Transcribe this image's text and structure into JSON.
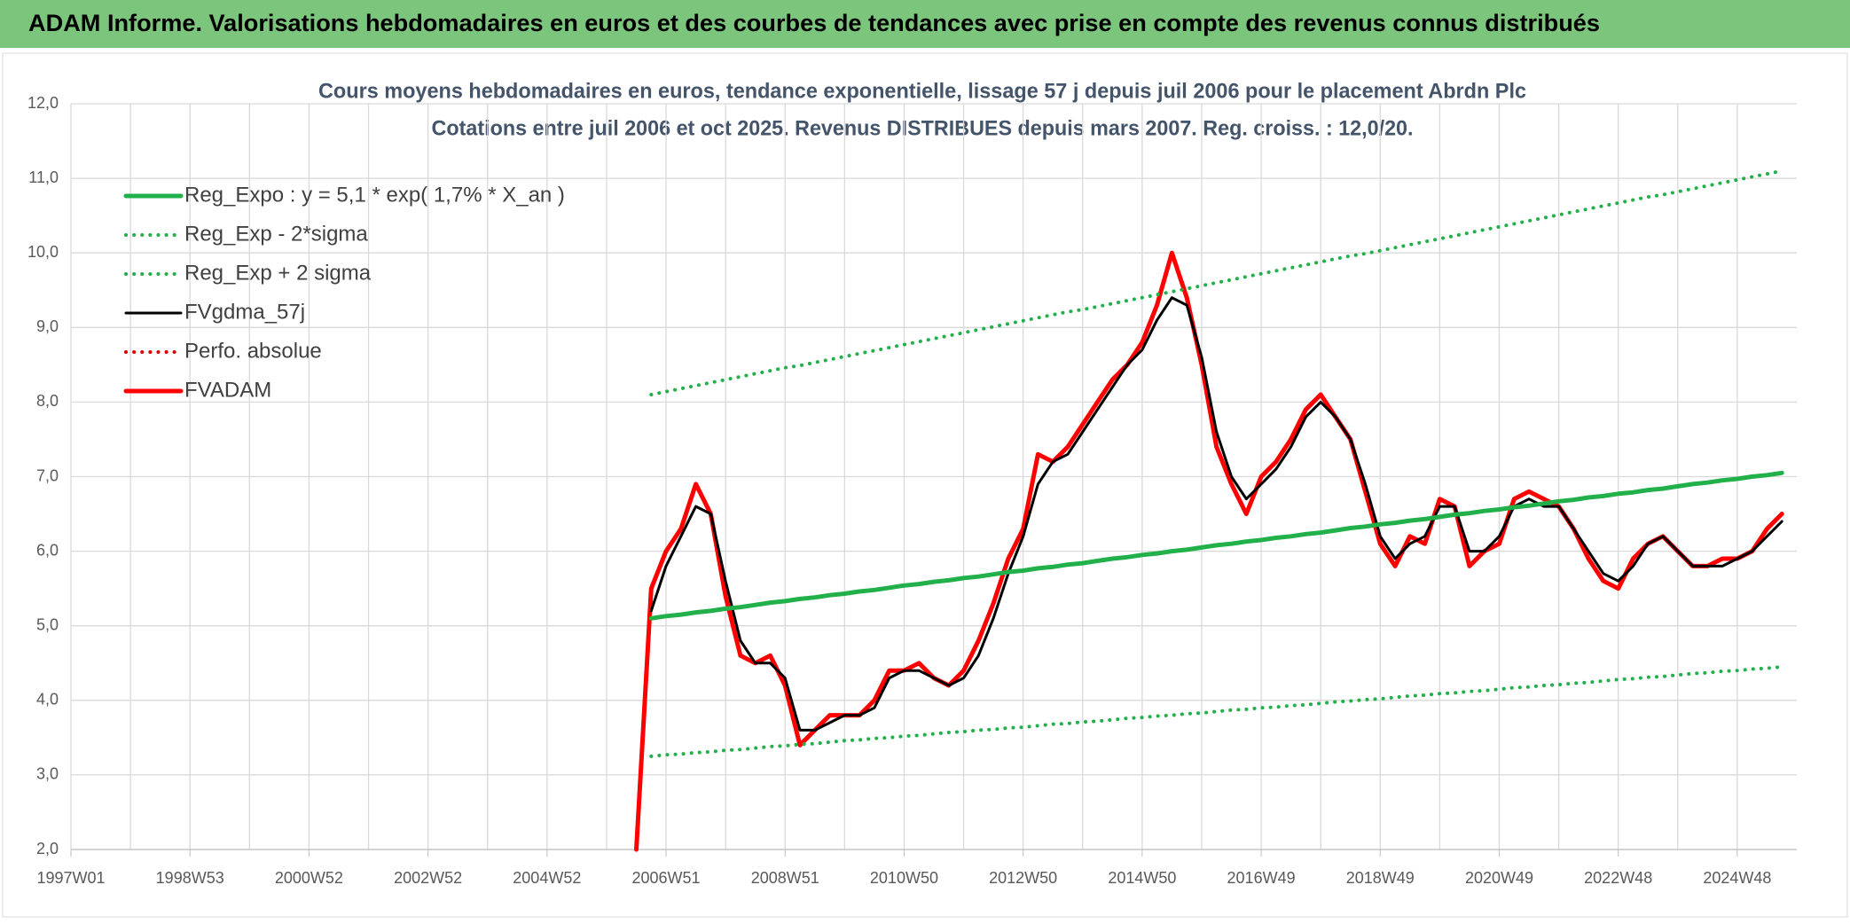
{
  "banner": {
    "title": "ADAM Informe. Valorisations hebdomadaires en euros et des courbes de tendances avec prise en compte des revenus connus distribués"
  },
  "chart_data": {
    "type": "line",
    "title": "Cours moyens hebdomadaires en euros, tendance exponentielle, lissage 57 j depuis juil 2006 pour le placement Abrdn Plc",
    "subtitle": "Cotations entre juil 2006 et oct 2025. Revenus DISTRIBUES depuis mars 2007. Reg. croiss. : 12,0/20.",
    "categories": [
      "1997W01",
      null,
      null,
      null,
      null,
      null,
      null,
      null,
      "1998W53",
      null,
      null,
      null,
      null,
      null,
      null,
      null,
      "2000W52",
      null,
      null,
      null,
      null,
      null,
      null,
      null,
      "2002W52",
      null,
      null,
      null,
      null,
      null,
      null,
      null,
      "2004W52",
      null,
      null,
      null,
      null,
      null,
      null,
      null,
      "2006W51",
      null,
      null,
      null,
      null,
      null,
      null,
      null,
      "2008W51",
      null,
      null,
      null,
      null,
      null,
      null,
      null,
      "2010W50",
      null,
      null,
      null,
      null,
      null,
      null,
      null,
      "2012W50",
      null,
      null,
      null,
      null,
      null,
      null,
      null,
      "2014W50",
      null,
      null,
      null,
      null,
      null,
      null,
      null,
      "2016W49",
      null,
      null,
      null,
      null,
      null,
      null,
      null,
      "2018W49",
      null,
      null,
      null,
      null,
      null,
      null,
      null,
      "2020W49",
      null,
      null,
      null,
      null,
      null,
      null,
      null,
      "2022W48",
      null,
      null,
      null,
      null,
      null,
      null,
      null,
      "2024W48",
      null,
      null,
      null
    ],
    "ylim": [
      2,
      12
    ],
    "yticks": [
      {
        "value": 2,
        "label": "2,0"
      },
      {
        "value": 3,
        "label": "3,0"
      },
      {
        "value": 4,
        "label": "4,0"
      },
      {
        "value": 5,
        "label": "5,0"
      },
      {
        "value": 6,
        "label": "6,0"
      },
      {
        "value": 7,
        "label": "7,0"
      },
      {
        "value": 8,
        "label": "8,0"
      },
      {
        "value": 9,
        "label": "9,0"
      },
      {
        "value": 10,
        "label": "10,0"
      },
      {
        "value": 11,
        "label": "11,0"
      },
      {
        "value": 12,
        "label": "12,0"
      }
    ],
    "grid": true,
    "legend": "upper left",
    "series": [
      {
        "name": "Reg_Expo : y = 5,1 * exp( 1,7% *  X_an )",
        "color": "#22b04b",
        "style": "thick",
        "values": [
          null,
          null,
          null,
          null,
          null,
          null,
          null,
          null,
          null,
          null,
          null,
          null,
          null,
          null,
          null,
          null,
          null,
          null,
          null,
          null,
          null,
          null,
          null,
          null,
          null,
          null,
          null,
          null,
          null,
          null,
          null,
          null,
          null,
          null,
          null,
          null,
          null,
          null,
          null,
          5.1,
          5.13,
          5.15,
          5.18,
          5.2,
          5.23,
          5.25,
          5.28,
          5.31,
          5.33,
          5.36,
          5.38,
          5.41,
          5.43,
          5.46,
          5.48,
          5.51,
          5.54,
          5.56,
          5.59,
          5.61,
          5.64,
          5.66,
          5.69,
          5.72,
          5.74,
          5.77,
          5.79,
          5.82,
          5.84,
          5.87,
          5.9,
          5.92,
          5.95,
          5.97,
          6.0,
          6.02,
          6.05,
          6.08,
          6.1,
          6.13,
          6.15,
          6.18,
          6.2,
          6.23,
          6.25,
          6.28,
          6.31,
          6.33,
          6.36,
          6.38,
          6.41,
          6.43,
          6.46,
          6.49,
          6.51,
          6.54,
          6.56,
          6.59,
          6.61,
          6.64,
          6.67,
          6.69,
          6.72,
          6.74,
          6.77,
          6.79,
          6.82,
          6.84,
          6.87,
          6.9,
          6.92,
          6.95,
          6.97,
          7.0,
          7.02,
          7.05
        ]
      },
      {
        "name": "Reg_Exp - 2*sigma",
        "color": "#22b04b",
        "style": "dotted",
        "values": [
          null,
          null,
          null,
          null,
          null,
          null,
          null,
          null,
          null,
          null,
          null,
          null,
          null,
          null,
          null,
          null,
          null,
          null,
          null,
          null,
          null,
          null,
          null,
          null,
          null,
          null,
          null,
          null,
          null,
          null,
          null,
          null,
          null,
          null,
          null,
          null,
          null,
          null,
          null,
          3.25,
          3.27,
          3.28,
          3.3,
          3.31,
          3.33,
          3.34,
          3.36,
          3.38,
          3.39,
          3.41,
          3.42,
          3.44,
          3.46,
          3.47,
          3.49,
          3.5,
          3.52,
          3.53,
          3.55,
          3.57,
          3.58,
          3.6,
          3.61,
          3.63,
          3.64,
          3.66,
          3.68,
          3.69,
          3.71,
          3.72,
          3.74,
          3.76,
          3.77,
          3.79,
          3.8,
          3.82,
          3.83,
          3.85,
          3.87,
          3.88,
          3.9,
          3.91,
          3.93,
          3.94,
          3.96,
          3.98,
          3.99,
          4.01,
          4.02,
          4.04,
          4.06,
          4.07,
          4.09,
          4.1,
          4.12,
          4.13,
          4.15,
          4.17,
          4.18,
          4.2,
          4.21,
          4.23,
          4.24,
          4.26,
          4.28,
          4.29,
          4.31,
          4.32,
          4.34,
          4.36,
          4.37,
          4.39,
          4.4,
          4.42,
          4.43,
          4.45
        ]
      },
      {
        "name": "Reg_Exp + 2 sigma",
        "color": "#22b04b",
        "style": "dotted",
        "values": [
          null,
          null,
          null,
          null,
          null,
          null,
          null,
          null,
          null,
          null,
          null,
          null,
          null,
          null,
          null,
          null,
          null,
          null,
          null,
          null,
          null,
          null,
          null,
          null,
          null,
          null,
          null,
          null,
          null,
          null,
          null,
          null,
          null,
          null,
          null,
          null,
          null,
          null,
          null,
          8.1,
          8.14,
          8.18,
          8.22,
          8.26,
          8.3,
          8.34,
          8.38,
          8.42,
          8.46,
          8.49,
          8.53,
          8.57,
          8.61,
          8.65,
          8.69,
          8.73,
          8.77,
          8.81,
          8.85,
          8.89,
          8.93,
          8.97,
          9.01,
          9.05,
          9.09,
          9.13,
          9.17,
          9.21,
          9.24,
          9.28,
          9.32,
          9.36,
          9.4,
          9.44,
          9.48,
          9.52,
          9.56,
          9.6,
          9.64,
          9.68,
          9.72,
          9.76,
          9.8,
          9.84,
          9.88,
          9.92,
          9.96,
          9.99,
          10.03,
          10.07,
          10.11,
          10.15,
          10.19,
          10.23,
          10.27,
          10.31,
          10.35,
          10.39,
          10.43,
          10.47,
          10.51,
          10.55,
          10.59,
          10.63,
          10.67,
          10.71,
          10.75,
          10.78,
          10.82,
          10.86,
          10.9,
          10.94,
          10.98,
          11.02,
          11.06,
          11.1
        ]
      },
      {
        "name": "FVgdma_57j",
        "color": "#000000",
        "style": "thin",
        "values": [
          null,
          null,
          null,
          null,
          null,
          null,
          null,
          null,
          null,
          null,
          null,
          null,
          null,
          null,
          null,
          null,
          null,
          null,
          null,
          null,
          null,
          null,
          null,
          null,
          null,
          null,
          null,
          null,
          null,
          null,
          null,
          null,
          null,
          null,
          null,
          null,
          null,
          null,
          null,
          5.2,
          5.8,
          6.2,
          6.6,
          6.5,
          5.6,
          4.8,
          4.5,
          4.5,
          4.3,
          3.6,
          3.6,
          3.7,
          3.8,
          3.8,
          3.9,
          4.3,
          4.4,
          4.4,
          4.3,
          4.2,
          4.3,
          4.6,
          5.1,
          5.7,
          6.2,
          6.9,
          7.2,
          7.3,
          7.6,
          7.9,
          8.2,
          8.5,
          8.7,
          9.1,
          9.4,
          9.3,
          8.6,
          7.6,
          7.0,
          6.7,
          6.9,
          7.1,
          7.4,
          7.8,
          8.0,
          7.8,
          7.5,
          6.9,
          6.2,
          5.9,
          6.1,
          6.2,
          6.6,
          6.6,
          6.0,
          6.0,
          6.2,
          6.6,
          6.7,
          6.6,
          6.6,
          6.3,
          6.0,
          5.7,
          5.6,
          5.8,
          6.1,
          6.2,
          6.0,
          5.8,
          5.8,
          5.8,
          5.9,
          6.0,
          6.2,
          6.4
        ]
      },
      {
        "name": "Perfo. absolue",
        "color": "#e00000",
        "style": "dotted",
        "values": [
          null,
          null,
          null,
          null,
          null,
          null,
          null,
          null,
          null,
          null,
          null,
          null,
          null,
          null,
          null,
          null,
          null,
          null,
          null,
          null,
          null,
          null,
          null,
          null,
          null,
          null,
          null,
          null,
          null,
          null,
          null,
          null,
          null,
          null,
          null,
          null,
          null,
          null,
          2.0,
          5.5,
          6.0,
          6.3,
          6.9,
          6.5,
          5.4,
          4.6,
          4.5,
          4.6,
          4.2,
          3.4,
          3.6,
          3.8,
          3.8,
          3.8,
          4.0,
          4.4,
          4.4,
          4.5,
          4.3,
          4.2,
          4.4,
          4.8,
          5.3,
          5.9,
          6.3,
          7.3,
          7.2,
          7.4,
          7.7,
          8.0,
          8.3,
          8.5,
          8.8,
          9.3,
          10.0,
          9.4,
          8.5,
          7.4,
          6.9,
          6.5,
          7.0,
          7.2,
          7.5,
          7.9,
          8.1,
          7.8,
          7.5,
          6.8,
          6.1,
          5.8,
          6.2,
          6.1,
          6.7,
          6.6,
          5.8,
          6.0,
          6.1,
          6.7,
          6.8,
          6.7,
          6.6,
          6.3,
          5.9,
          5.6,
          5.5,
          5.9,
          6.1,
          6.2,
          6.0,
          5.8,
          5.8,
          5.9,
          5.9,
          6.0,
          6.3,
          6.5
        ]
      },
      {
        "name": "FVADAM",
        "color": "#ff0000",
        "style": "thick",
        "values": [
          null,
          null,
          null,
          null,
          null,
          null,
          null,
          null,
          null,
          null,
          null,
          null,
          null,
          null,
          null,
          null,
          null,
          null,
          null,
          null,
          null,
          null,
          null,
          null,
          null,
          null,
          null,
          null,
          null,
          null,
          null,
          null,
          null,
          null,
          null,
          null,
          null,
          null,
          2.0,
          5.5,
          6.0,
          6.3,
          6.9,
          6.5,
          5.4,
          4.6,
          4.5,
          4.6,
          4.2,
          3.4,
          3.6,
          3.8,
          3.8,
          3.8,
          4.0,
          4.4,
          4.4,
          4.5,
          4.3,
          4.2,
          4.4,
          4.8,
          5.3,
          5.9,
          6.3,
          7.3,
          7.2,
          7.4,
          7.7,
          8.0,
          8.3,
          8.5,
          8.8,
          9.3,
          10.0,
          9.4,
          8.5,
          7.4,
          6.9,
          6.5,
          7.0,
          7.2,
          7.5,
          7.9,
          8.1,
          7.8,
          7.5,
          6.8,
          6.1,
          5.8,
          6.2,
          6.1,
          6.7,
          6.6,
          5.8,
          6.0,
          6.1,
          6.7,
          6.8,
          6.7,
          6.6,
          6.3,
          5.9,
          5.6,
          5.5,
          5.9,
          6.1,
          6.2,
          6.0,
          5.8,
          5.8,
          5.9,
          5.9,
          6.0,
          6.3,
          6.5
        ]
      }
    ]
  }
}
